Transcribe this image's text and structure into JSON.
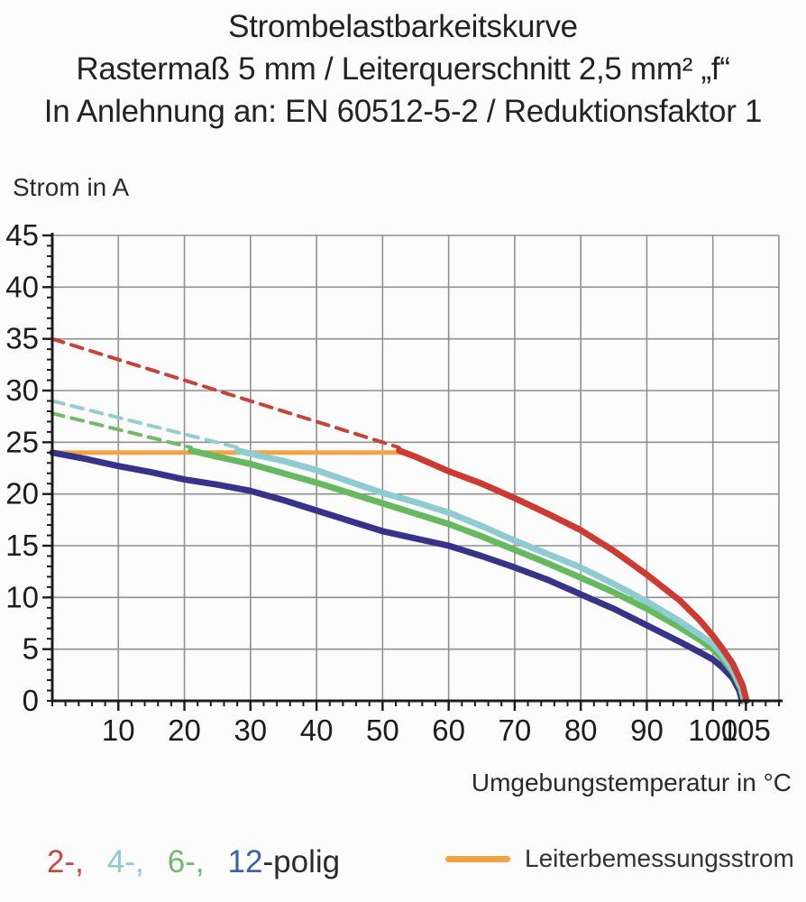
{
  "title": {
    "line1": "Strombelastbarkeitskurve",
    "line2": "Rastermaß 5 mm / Leiterquerschnitt 2,5 mm² „f“",
    "line3": "In Anlehnung an: EN 60512-5-2 / Reduktionsfaktor 1"
  },
  "chart_data": {
    "type": "line",
    "title": "Strombelastbarkeitskurve",
    "xlabel": "Umgebungstemperatur in °C",
    "ylabel": "Strom in A",
    "xlim": [
      0,
      110
    ],
    "ylim": [
      0,
      45
    ],
    "x_ticks": [
      10,
      20,
      30,
      40,
      50,
      60,
      70,
      80,
      90,
      100,
      105
    ],
    "y_ticks": [
      0,
      5,
      10,
      15,
      20,
      25,
      30,
      35,
      40,
      45
    ],
    "x_grid_step": 10,
    "y_grid_step": 5,
    "x_minor_step": 2,
    "y_minor_step": 1,
    "grid": true,
    "grid_color": "#909090",
    "axis_color": "#1c1c1c",
    "rated_value": 24,
    "series": [
      {
        "name": "Leiterbemessungsstrom",
        "color": "#f2a444",
        "style": "solid",
        "width": 5,
        "points": [
          [
            0,
            24
          ],
          [
            53.3,
            24
          ]
        ]
      },
      {
        "name": "2-polig (gestrichelt)",
        "color": "#c8423a",
        "style": "dashed",
        "width": 4,
        "points": [
          [
            0,
            35
          ],
          [
            52.5,
            24.5
          ]
        ]
      },
      {
        "name": "4-polig (gestrichelt)",
        "color": "#93ccd1",
        "style": "dashed",
        "width": 4,
        "points": [
          [
            0,
            29
          ],
          [
            28,
            24.5
          ]
        ]
      },
      {
        "name": "6-polig (gestrichelt)",
        "color": "#74b96a",
        "style": "dashed",
        "width": 4,
        "points": [
          [
            0,
            27.8
          ],
          [
            21,
            24.5
          ]
        ]
      },
      {
        "name": "12-polig",
        "color": "#37328a",
        "style": "solid",
        "width": 7,
        "points": [
          [
            0,
            24
          ],
          [
            5,
            23.4
          ],
          [
            10,
            22.7
          ],
          [
            15,
            22.1
          ],
          [
            20,
            21.4
          ],
          [
            25,
            20.9
          ],
          [
            30,
            20.3
          ],
          [
            35,
            19.4
          ],
          [
            40,
            18.4
          ],
          [
            45,
            17.4
          ],
          [
            50,
            16.4
          ],
          [
            55,
            15.7
          ],
          [
            60,
            15
          ],
          [
            65,
            14
          ],
          [
            70,
            12.9
          ],
          [
            75,
            11.7
          ],
          [
            80,
            10.3
          ],
          [
            85,
            8.9
          ],
          [
            90,
            7.3
          ],
          [
            95,
            5.7
          ],
          [
            98,
            4.7
          ],
          [
            100,
            4
          ],
          [
            101.5,
            3.2
          ],
          [
            103,
            2.2
          ],
          [
            104,
            1
          ],
          [
            104.4,
            0
          ]
        ]
      },
      {
        "name": "6-polig",
        "color": "#66b95e",
        "style": "solid",
        "width": 7,
        "points": [
          [
            21,
            24.2
          ],
          [
            25,
            23.6
          ],
          [
            30,
            22.9
          ],
          [
            35,
            22
          ],
          [
            40,
            21.1
          ],
          [
            45,
            20.1
          ],
          [
            50,
            19.1
          ],
          [
            55,
            18.1
          ],
          [
            60,
            17.1
          ],
          [
            65,
            15.9
          ],
          [
            70,
            14.6
          ],
          [
            75,
            13.3
          ],
          [
            80,
            11.9
          ],
          [
            85,
            10.5
          ],
          [
            90,
            8.9
          ],
          [
            95,
            7.1
          ],
          [
            98,
            5.9
          ],
          [
            100,
            5
          ],
          [
            101.5,
            4
          ],
          [
            103,
            2.8
          ],
          [
            104.2,
            1.2
          ],
          [
            104.7,
            0
          ]
        ]
      },
      {
        "name": "4-polig",
        "color": "#8fccd1",
        "style": "solid",
        "width": 7,
        "points": [
          [
            28,
            24.2
          ],
          [
            32,
            23.6
          ],
          [
            35,
            23.2
          ],
          [
            40,
            22.3
          ],
          [
            45,
            21.2
          ],
          [
            50,
            20.1
          ],
          [
            55,
            19.2
          ],
          [
            60,
            18.2
          ],
          [
            65,
            16.9
          ],
          [
            70,
            15.5
          ],
          [
            75,
            14.2
          ],
          [
            80,
            12.9
          ],
          [
            85,
            11.3
          ],
          [
            90,
            9.6
          ],
          [
            95,
            7.7
          ],
          [
            98,
            6.4
          ],
          [
            100,
            5.5
          ],
          [
            101.5,
            4.4
          ],
          [
            103,
            3
          ],
          [
            104.3,
            1.3
          ],
          [
            104.8,
            0
          ]
        ]
      },
      {
        "name": "2-polig",
        "color": "#cd3a31",
        "style": "solid",
        "width": 7,
        "points": [
          [
            52.5,
            24.2
          ],
          [
            55,
            23.6
          ],
          [
            60,
            22.2
          ],
          [
            65,
            21
          ],
          [
            70,
            19.6
          ],
          [
            75,
            18.1
          ],
          [
            80,
            16.5
          ],
          [
            85,
            14.5
          ],
          [
            90,
            12.2
          ],
          [
            95,
            9.7
          ],
          [
            98,
            7.8
          ],
          [
            100,
            6.3
          ],
          [
            101.5,
            5
          ],
          [
            103,
            3.6
          ],
          [
            104.5,
            1.5
          ],
          [
            105.1,
            0
          ]
        ]
      }
    ]
  },
  "legend": {
    "poles": [
      {
        "label": "2-,",
        "color": "#c9463f"
      },
      {
        "label": "4-,",
        "color": "#8ec8d8"
      },
      {
        "label": "6-,",
        "color": "#74b86e"
      },
      {
        "label": "12",
        "color": "#3b5fa8"
      }
    ],
    "suffix": "-polig",
    "rated": {
      "label": "Leiterbemessungsstrom",
      "color": "#f2a444"
    }
  }
}
